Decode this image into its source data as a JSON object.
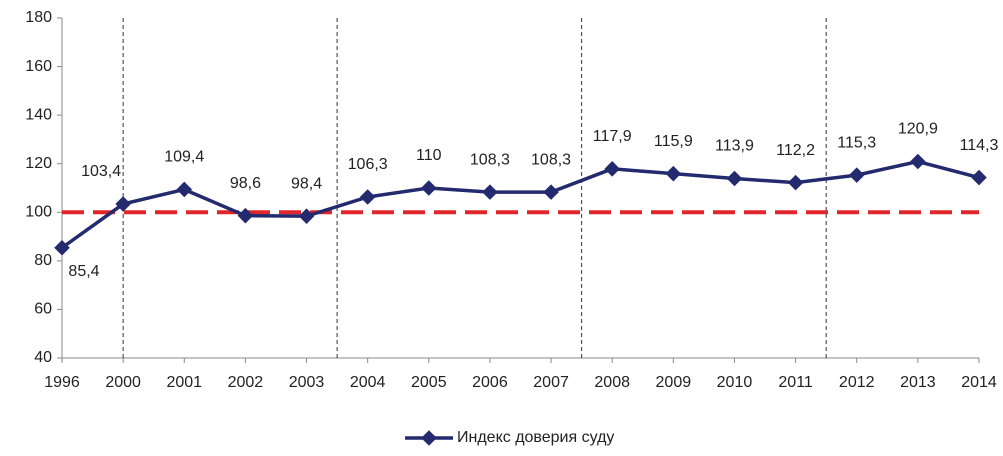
{
  "chart_data": {
    "type": "line",
    "categories": [
      "1996",
      "2000",
      "2001",
      "2002",
      "2003",
      "2004",
      "2005",
      "2006",
      "2007",
      "2008",
      "2009",
      "2010",
      "2011",
      "2012",
      "2013",
      "2014"
    ],
    "series": [
      {
        "name": "Индекс доверия суду",
        "color": "#232a6e",
        "values": [
          85.4,
          103.4,
          109.4,
          98.6,
          98.4,
          106.3,
          110,
          108.3,
          108.3,
          117.9,
          115.9,
          113.9,
          112.2,
          115.3,
          120.9,
          114.3
        ],
        "value_labels": [
          "85,4",
          "103,4",
          "109,4",
          "98,6",
          "98,4",
          "106,3",
          "110",
          "108,3",
          "108,3",
          "117,9",
          "115,9",
          "113,9",
          "112,2",
          "115,3",
          "120,9",
          "114,3"
        ]
      }
    ],
    "reference_line": {
      "value": 100,
      "color": "#e0262a"
    },
    "ylim": [
      40,
      180
    ],
    "yticks": [
      40,
      60,
      80,
      100,
      120,
      140,
      160,
      180
    ],
    "grid": false,
    "legend": "bottom"
  }
}
